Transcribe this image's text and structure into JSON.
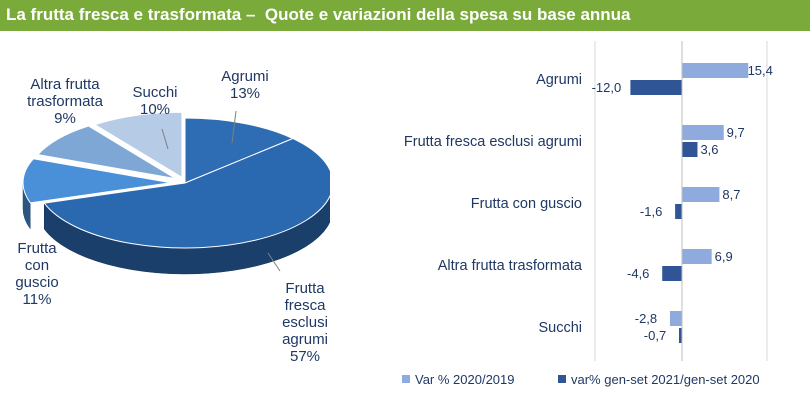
{
  "header": {
    "title": "La frutta fresca e trasformata –  Quote e variazioni della spesa su base annua"
  },
  "chart_data": [
    {
      "type": "pie",
      "title": "",
      "slices": [
        {
          "label_lines": [
            "Agrumi",
            "13%"
          ],
          "value": 13,
          "color": "#2e6db4"
        },
        {
          "label_lines": [
            "Frutta",
            "fresca",
            "esclusi",
            "agrumi",
            "57%"
          ],
          "value": 57,
          "color": "#2a69b0"
        },
        {
          "label_lines": [
            "Frutta",
            "con",
            "guscio",
            "11%"
          ],
          "value": 11,
          "color": "#4a90d9"
        },
        {
          "label_lines": [
            "Altra frutta",
            "trasformata",
            "9%"
          ],
          "value": 9,
          "color": "#7ea7d6"
        },
        {
          "label_lines": [
            "Succhi",
            "10%"
          ],
          "value": 10,
          "color": "#b6cbe6"
        }
      ]
    },
    {
      "type": "bar",
      "orientation": "horizontal",
      "categories": [
        "Agrumi",
        "Frutta fresca esclusi agrumi",
        "Frutta con guscio",
        "Altra frutta trasformata",
        "Succhi"
      ],
      "series": [
        {
          "name": "Var % 2020/2019",
          "color": "#8faadc",
          "values": [
            15.4,
            9.7,
            8.7,
            6.9,
            -2.8
          ],
          "value_labels": [
            "15,4",
            "9,7",
            "8,7",
            "6,9",
            "-2,8"
          ]
        },
        {
          "name": "var% gen-set 2021/gen-set 2020",
          "color": "#2f5597",
          "values": [
            -12.0,
            3.6,
            -1.6,
            -4.6,
            -0.7
          ],
          "value_labels": [
            "-12,0",
            "3,6",
            "-1,6",
            "-4,6",
            "-0,7"
          ]
        }
      ],
      "xlim": [
        -15,
        20
      ],
      "grid": true,
      "legend": "bottom"
    }
  ]
}
